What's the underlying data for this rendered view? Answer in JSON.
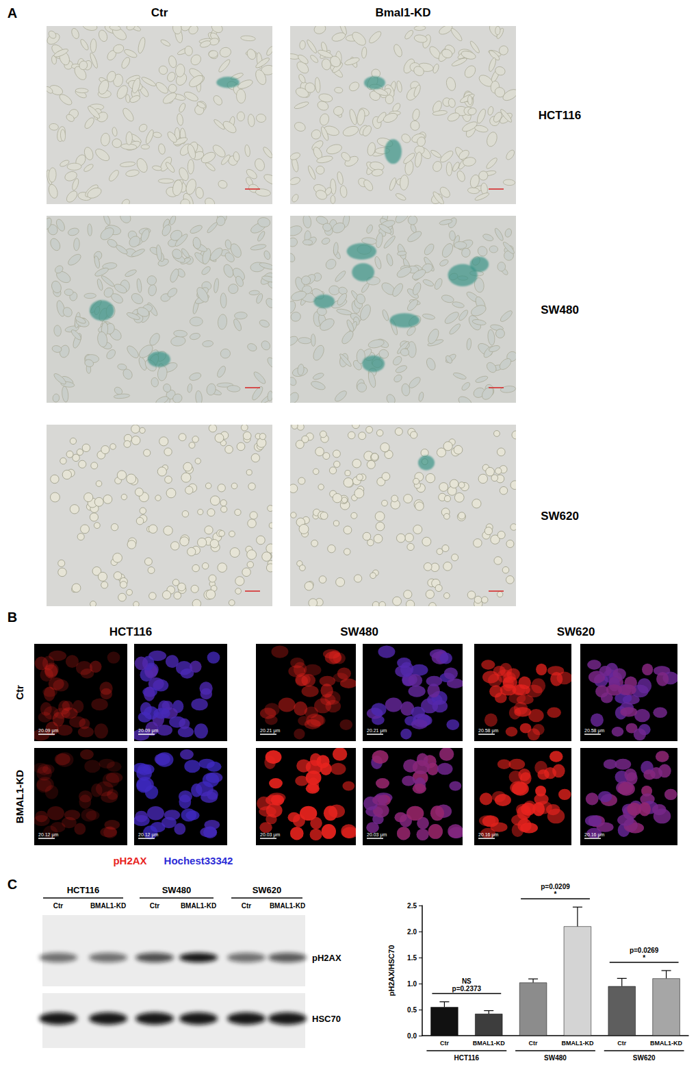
{
  "panels": {
    "A": {
      "label": "A",
      "columns": [
        "Ctr",
        "Bmal1-KD"
      ],
      "rows": [
        "HCT116",
        "SW480",
        "SW620"
      ]
    },
    "B": {
      "label": "B",
      "columns": [
        "HCT116",
        "SW480",
        "SW620"
      ],
      "rows": [
        "Ctr",
        "BMAL1-KD"
      ],
      "channels": [
        {
          "name": "pH2AX",
          "color": "#e8231e"
        },
        {
          "name": "Hochest33342",
          "color": "#2b2bd6"
        }
      ],
      "scale_bars": [
        [
          "20.09 μm",
          "20.09 μm",
          "20.21 μm",
          "20.21 μm",
          "20.58 μm",
          "20.58 μm"
        ],
        [
          "20.12 μm",
          "20.12 μm",
          "20.03 μm",
          "20.03 μm",
          "20.16 μm",
          "20.16 μm"
        ]
      ]
    },
    "C": {
      "label": "C",
      "blot": {
        "lines": [
          "HCT116",
          "SW480",
          "SW620"
        ],
        "lanes": [
          "Ctr",
          "BMAL1-KD"
        ],
        "bands": [
          "pH2AX",
          "HSC70"
        ]
      }
    }
  },
  "chart_data": {
    "type": "bar",
    "categories": [
      "Ctr",
      "BMAL1-KD",
      "Ctr",
      "BMAL1-KD",
      "Ctr",
      "BMAL1-KD"
    ],
    "values": [
      0.55,
      0.42,
      1.02,
      2.1,
      0.95,
      1.1
    ],
    "errors": [
      0.1,
      0.06,
      0.07,
      0.37,
      0.15,
      0.15
    ],
    "colors": [
      "#111111",
      "#3d3d3d",
      "#8c8c8c",
      "#d4d4d4",
      "#5e5e5e",
      "#a6a6a6"
    ],
    "y_label": "pH2AX/HSC70",
    "ylim": [
      0,
      2.5
    ],
    "yticks": [
      {
        "value": 0,
        "label": "0.0"
      },
      0.5,
      {
        "value": 1,
        "label": "1.0"
      },
      1.5,
      {
        "value": 2,
        "label": "2.0"
      },
      2.5
    ],
    "grid": false,
    "groups": [
      {
        "name": "HCT116",
        "members": [
          0,
          1
        ]
      },
      {
        "name": "SW480",
        "members": [
          2,
          3
        ]
      },
      {
        "name": "SW620",
        "members": [
          4,
          5
        ]
      }
    ],
    "comparisons": [
      {
        "members": [
          0,
          1
        ],
        "texts": [
          "NS",
          "p=0.2373"
        ]
      },
      {
        "members": [
          2,
          3
        ],
        "texts": [
          "p=0.0209",
          "*"
        ]
      },
      {
        "members": [
          4,
          5
        ],
        "texts": [
          "p=0.0269",
          "*"
        ]
      }
    ]
  }
}
